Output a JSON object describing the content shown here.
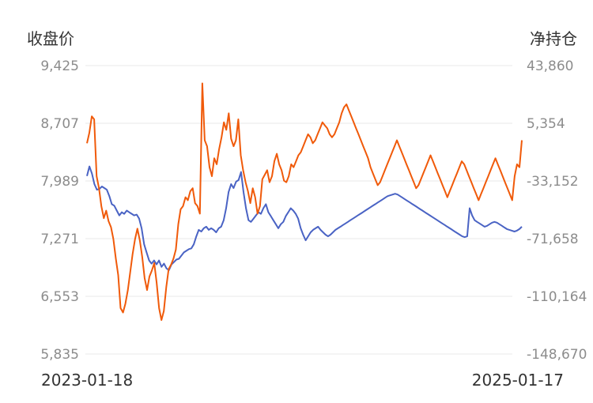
{
  "chart_data": {
    "type": "line",
    "left_axis_title": "收盘价",
    "right_axis_title": "净持仓",
    "left_ticks": [
      "9,425",
      "8,707",
      "7,989",
      "7,271",
      "6,553",
      "5,835"
    ],
    "right_ticks": [
      "43,860",
      "5,354",
      "-33,152",
      "-71,658",
      "-110,164",
      "-148,670"
    ],
    "left_ylim": [
      5835,
      9425
    ],
    "right_ylim": [
      -148670,
      43860
    ],
    "x_start_label": "2023-01-18",
    "x_end_label": "2025-01-17",
    "grid": "horizontal",
    "series": [
      {
        "axis": "left",
        "color": "#4a63c4",
        "values": [
          8050,
          8170,
          8080,
          7950,
          7880,
          7890,
          7920,
          7900,
          7880,
          7800,
          7700,
          7680,
          7620,
          7560,
          7600,
          7580,
          7620,
          7600,
          7580,
          7560,
          7570,
          7520,
          7400,
          7200,
          7100,
          7000,
          6960,
          7000,
          6950,
          7000,
          6920,
          6960,
          6900,
          6880,
          6950,
          6980,
          7010,
          7020,
          7060,
          7100,
          7120,
          7140,
          7150,
          7200,
          7300,
          7380,
          7360,
          7400,
          7420,
          7380,
          7400,
          7380,
          7350,
          7400,
          7420,
          7500,
          7650,
          7850,
          7950,
          7900,
          7980,
          8000,
          8100,
          7850,
          7650,
          7500,
          7480,
          7520,
          7560,
          7600,
          7580,
          7650,
          7700,
          7600,
          7550,
          7500,
          7450,
          7400,
          7450,
          7480,
          7550,
          7600,
          7650,
          7620,
          7580,
          7520,
          7400,
          7320,
          7250,
          7300,
          7350,
          7380,
          7400,
          7420,
          7380,
          7350,
          7320,
          7300,
          7320,
          7350,
          7380,
          7400,
          7420,
          7440,
          7460,
          7480,
          7500,
          7520,
          7540,
          7560,
          7580,
          7600,
          7620,
          7640,
          7660,
          7680,
          7700,
          7720,
          7740,
          7760,
          7780,
          7800,
          7810,
          7820,
          7830,
          7820,
          7800,
          7780,
          7760,
          7740,
          7720,
          7700,
          7680,
          7660,
          7640,
          7620,
          7600,
          7580,
          7560,
          7540,
          7520,
          7500,
          7480,
          7460,
          7440,
          7420,
          7400,
          7380,
          7360,
          7340,
          7320,
          7300,
          7290,
          7300,
          7650,
          7560,
          7500,
          7480,
          7460,
          7440,
          7420,
          7430,
          7450,
          7470,
          7480,
          7470,
          7450,
          7430,
          7410,
          7390,
          7380,
          7370,
          7360,
          7370,
          7390,
          7420
        ],
        "name": ""
      },
      {
        "axis": "right",
        "color": "#f05a0a",
        "values": [
          -8000,
          -1000,
          10000,
          8000,
          -30000,
          -38000,
          -50000,
          -58000,
          -53000,
          -60000,
          -64000,
          -72000,
          -85000,
          -96000,
          -118000,
          -121000,
          -115000,
          -106000,
          -94000,
          -82000,
          -72000,
          -65000,
          -73000,
          -84000,
          -98000,
          -106000,
          -97000,
          -93000,
          -88000,
          -101000,
          -118000,
          -126000,
          -120000,
          -104000,
          -92000,
          -89000,
          -85000,
          -79000,
          -62000,
          -52000,
          -50000,
          -44000,
          -46000,
          -40000,
          -38000,
          -48000,
          -50000,
          -55000,
          32000,
          -6000,
          -10000,
          -24000,
          -30000,
          -18000,
          -22000,
          -12000,
          -4000,
          6000,
          1000,
          12000,
          -5000,
          -10000,
          -6000,
          8000,
          -16000,
          -26000,
          -34000,
          -40000,
          -48000,
          -38000,
          -44000,
          -55000,
          -50000,
          -32000,
          -29000,
          -26000,
          -34000,
          -30000,
          -20000,
          -15000,
          -22000,
          -26000,
          -33000,
          -34000,
          -30000,
          -22000,
          -24000,
          -20000,
          -16000,
          -14000,
          -10000,
          -6000,
          -2000,
          -4000,
          -8000,
          -6000,
          -2000,
          2000,
          6000,
          4000,
          2000,
          -2000,
          -4000,
          -2000,
          2000,
          6000,
          12000,
          16000,
          18000,
          14000,
          10000,
          6000,
          2000,
          -2000,
          -6000,
          -10000,
          -14000,
          -18000,
          -24000,
          -28000,
          -32000,
          -36000,
          -34000,
          -30000,
          -26000,
          -22000,
          -18000,
          -14000,
          -10000,
          -6000,
          -10000,
          -14000,
          -18000,
          -22000,
          -26000,
          -30000,
          -34000,
          -38000,
          -36000,
          -32000,
          -28000,
          -24000,
          -20000,
          -16000,
          -20000,
          -24000,
          -28000,
          -32000,
          -36000,
          -40000,
          -44000,
          -40000,
          -36000,
          -32000,
          -28000,
          -24000,
          -20000,
          -22000,
          -26000,
          -30000,
          -34000,
          -38000,
          -42000,
          -46000,
          -42000,
          -38000,
          -34000,
          -30000,
          -26000,
          -22000,
          -18000,
          -22000,
          -26000,
          -30000,
          -34000,
          -38000,
          -42000,
          -46000,
          -30000,
          -22000,
          -24000,
          -6000
        ],
        "name": ""
      }
    ]
  }
}
